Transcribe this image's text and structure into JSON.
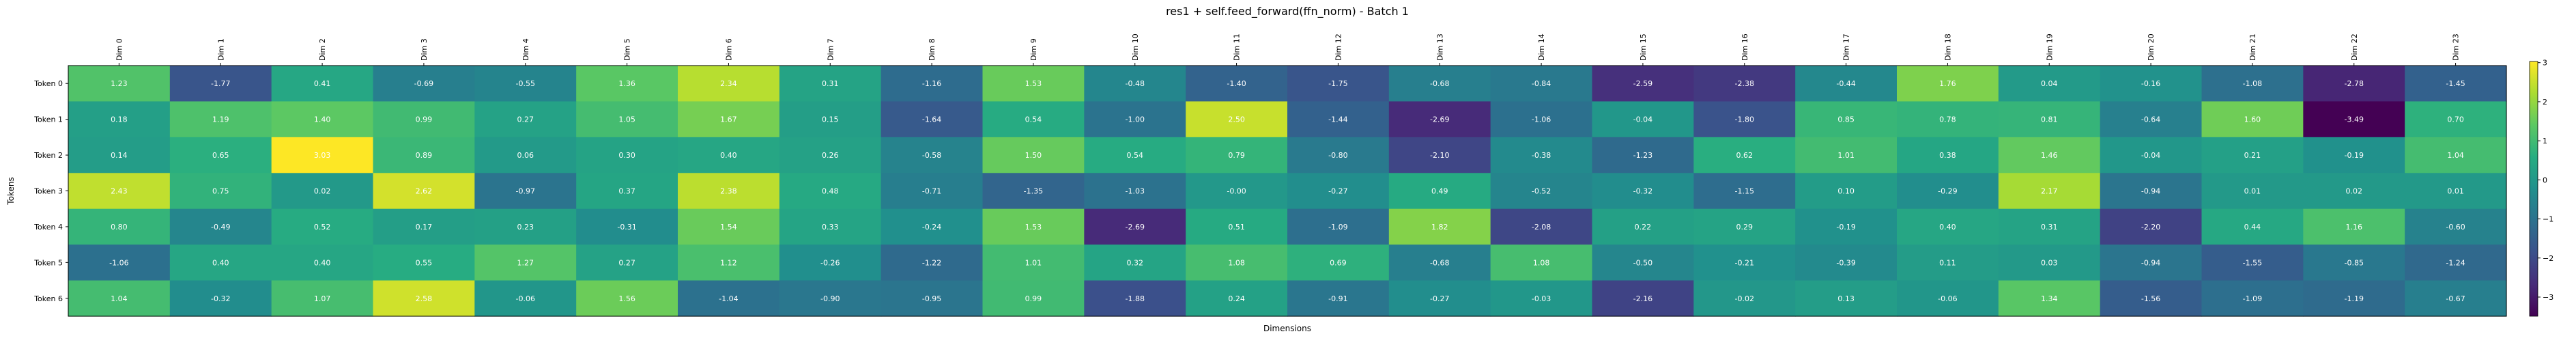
{
  "chart_data": {
    "type": "heatmap",
    "title": "res1 + self.feed_forward(ffn_norm) - Batch 1",
    "xlabel": "Dimensions",
    "ylabel": "Tokens",
    "x_labels": [
      "Dim 0",
      "Dim 1",
      "Dim 2",
      "Dim 3",
      "Dim 4",
      "Dim 5",
      "Dim 6",
      "Dim 7",
      "Dim 8",
      "Dim 9",
      "Dim 10",
      "Dim 11",
      "Dim 12",
      "Dim 13",
      "Dim 14",
      "Dim 15",
      "Dim 16",
      "Dim 17",
      "Dim 18",
      "Dim 19",
      "Dim 20",
      "Dim 21",
      "Dim 22",
      "Dim 23"
    ],
    "y_labels": [
      "Token 0",
      "Token 1",
      "Token 2",
      "Token 3",
      "Token 4",
      "Token 5",
      "Token 6"
    ],
    "values": [
      [
        1.23,
        -1.77,
        0.41,
        -0.69,
        -0.55,
        1.36,
        2.34,
        0.31,
        -1.16,
        1.53,
        -0.48,
        -1.4,
        -1.75,
        -0.68,
        -0.84,
        -2.59,
        -2.38,
        -0.44,
        1.76,
        0.04,
        -0.16,
        -1.08,
        -2.78,
        -1.45
      ],
      [
        0.18,
        1.19,
        1.4,
        0.99,
        0.27,
        1.05,
        1.67,
        0.15,
        -1.64,
        0.54,
        -1.0,
        2.5,
        -1.44,
        -2.69,
        -1.06,
        -0.04,
        -1.8,
        0.85,
        0.78,
        0.81,
        -0.64,
        1.6,
        -3.49,
        0.7
      ],
      [
        0.14,
        0.65,
        3.03,
        0.89,
        0.06,
        0.3,
        0.4,
        0.26,
        -0.58,
        1.5,
        0.54,
        0.79,
        -0.8,
        -2.1,
        -0.38,
        -1.23,
        0.62,
        1.01,
        0.38,
        1.46,
        -0.04,
        0.21,
        -0.19,
        1.04
      ],
      [
        2.43,
        0.75,
        0.02,
        2.62,
        -0.97,
        0.37,
        2.38,
        0.48,
        -0.71,
        -1.35,
        -1.03,
        -0.0,
        -0.27,
        0.49,
        -0.52,
        -0.32,
        -1.15,
        0.1,
        -0.29,
        2.17,
        -0.94,
        0.01,
        0.02,
        0.01
      ],
      [
        0.8,
        -0.49,
        0.52,
        0.17,
        0.23,
        -0.31,
        1.54,
        0.33,
        -0.24,
        1.53,
        -2.69,
        0.51,
        -1.09,
        1.82,
        -2.08,
        0.22,
        0.29,
        -0.19,
        0.4,
        0.31,
        -2.2,
        0.44,
        1.16,
        -0.6
      ],
      [
        -1.06,
        0.4,
        0.4,
        0.55,
        1.27,
        0.27,
        1.12,
        -0.26,
        -1.22,
        1.01,
        0.32,
        1.08,
        0.69,
        -0.68,
        1.08,
        -0.5,
        -0.21,
        -0.39,
        0.11,
        0.03,
        -0.94,
        -1.55,
        -0.85,
        -1.24
      ],
      [
        1.04,
        -0.32,
        1.07,
        2.58,
        -0.06,
        1.56,
        -1.04,
        -0.9,
        -0.95,
        0.99,
        -1.88,
        0.24,
        -0.91,
        -0.27,
        -0.03,
        -2.16,
        -0.02,
        0.13,
        -0.06,
        1.34,
        -1.56,
        -1.09,
        -1.19,
        -0.67
      ]
    ],
    "value_labels": [
      [
        "1.23",
        "-1.77",
        "0.41",
        "-0.69",
        "-0.55",
        "1.36",
        "2.34",
        "0.31",
        "-1.16",
        "1.53",
        "-0.48",
        "-1.40",
        "-1.75",
        "-0.68",
        "-0.84",
        "-2.59",
        "-2.38",
        "-0.44",
        "1.76",
        "0.04",
        "-0.16",
        "-1.08",
        "-2.78",
        "-1.45"
      ],
      [
        "0.18",
        "1.19",
        "1.40",
        "0.99",
        "0.27",
        "1.05",
        "1.67",
        "0.15",
        "-1.64",
        "0.54",
        "-1.00",
        "2.50",
        "-1.44",
        "-2.69",
        "-1.06",
        "-0.04",
        "-1.80",
        "0.85",
        "0.78",
        "0.81",
        "-0.64",
        "1.60",
        "-3.49",
        "0.70"
      ],
      [
        "0.14",
        "0.65",
        "3.03",
        "0.89",
        "0.06",
        "0.30",
        "0.40",
        "0.26",
        "-0.58",
        "1.50",
        "0.54",
        "0.79",
        "-0.80",
        "-2.10",
        "-0.38",
        "-1.23",
        "0.62",
        "1.01",
        "0.38",
        "1.46",
        "-0.04",
        "0.21",
        "-0.19",
        "1.04"
      ],
      [
        "2.43",
        "0.75",
        "0.02",
        "2.62",
        "-0.97",
        "0.37",
        "2.38",
        "0.48",
        "-0.71",
        "-1.35",
        "-1.03",
        "-0.00",
        "-0.27",
        "0.49",
        "-0.52",
        "-0.32",
        "-1.15",
        "0.10",
        "-0.29",
        "2.17",
        "-0.94",
        "0.01",
        "0.02",
        "0.01"
      ],
      [
        "0.80",
        "-0.49",
        "0.52",
        "0.17",
        "0.23",
        "-0.31",
        "1.54",
        "0.33",
        "-0.24",
        "1.53",
        "-2.69",
        "0.51",
        "-1.09",
        "1.82",
        "-2.08",
        "0.22",
        "0.29",
        "-0.19",
        "0.40",
        "0.31",
        "-2.20",
        "0.44",
        "1.16",
        "-0.60"
      ],
      [
        "-1.06",
        "0.40",
        "0.40",
        "0.55",
        "1.27",
        "0.27",
        "1.12",
        "-0.26",
        "-1.22",
        "1.01",
        "0.32",
        "1.08",
        "0.69",
        "-0.68",
        "1.08",
        "-0.50",
        "-0.21",
        "-0.39",
        "0.11",
        "0.03",
        "-0.94",
        "-1.55",
        "-0.85",
        "-1.24"
      ],
      [
        "1.04",
        "-0.32",
        "1.07",
        "2.58",
        "-0.06",
        "1.56",
        "-1.04",
        "-0.90",
        "-0.95",
        "0.99",
        "-1.88",
        "0.24",
        "-0.91",
        "-0.27",
        "-0.03",
        "-2.16",
        "-0.02",
        "0.13",
        "-0.06",
        "1.34",
        "-1.56",
        "-1.09",
        "-1.19",
        "-0.67"
      ]
    ],
    "colormap": "viridis",
    "color_range": [
      -3.49,
      3.03
    ],
    "colorbar_ticks": [
      3,
      2,
      1,
      0,
      -1,
      -2,
      -3
    ],
    "colorbar_tick_labels": [
      "3",
      "2",
      "1",
      "0",
      "−1",
      "−2",
      "−3"
    ],
    "grid": false,
    "colorbar_position": "right"
  }
}
